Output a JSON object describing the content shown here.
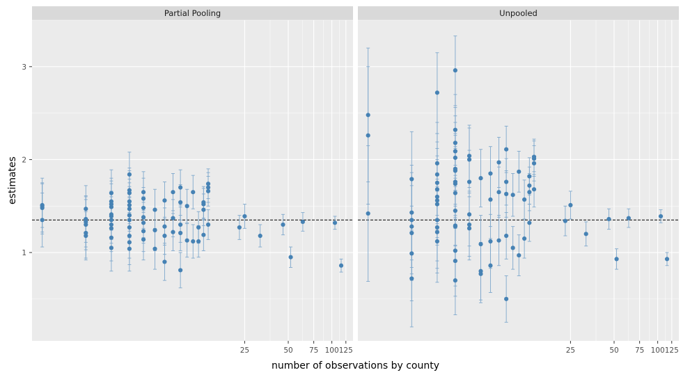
{
  "chart_data": {
    "type": "scatter",
    "xlabel": "number of observations by county",
    "ylabel": "estimates",
    "x_scale": "log",
    "xlim": [
      0.85,
      140
    ],
    "ylim": [
      0.05,
      3.5
    ],
    "x_ticks": [
      25,
      50,
      75,
      100,
      125
    ],
    "y_ticks": [
      1,
      2,
      3
    ],
    "grid": true,
    "reference_line": {
      "y": 1.35,
      "style": "dashed"
    },
    "colors": {
      "point": "#4682b4",
      "errorbar": "#7fa8cc",
      "panel_bg": "#ebebeb",
      "strip_bg": "#d9d9d9",
      "grid": "#ffffff",
      "refline": "#000000"
    },
    "panels": [
      {
        "strip": "Partial Pooling",
        "points": [
          {
            "x": 1,
            "y": 1.51,
            "lo": 1.27,
            "hi": 1.75
          },
          {
            "x": 1,
            "y": 1.48,
            "lo": 1.22,
            "hi": 1.74
          },
          {
            "x": 1,
            "y": 1.35,
            "lo": 1.06,
            "hi": 1.64
          },
          {
            "x": 1,
            "y": 1.5,
            "lo": 1.2,
            "hi": 1.8
          },
          {
            "x": 2,
            "y": 1.47,
            "lo": 1.22,
            "hi": 1.72
          },
          {
            "x": 2,
            "y": 1.36,
            "lo": 1.11,
            "hi": 1.61
          },
          {
            "x": 2,
            "y": 1.33,
            "lo": 1.06,
            "hi": 1.6
          },
          {
            "x": 2,
            "y": 1.3,
            "lo": 1.03,
            "hi": 1.57
          },
          {
            "x": 2,
            "y": 1.21,
            "lo": 0.94,
            "hi": 1.48
          },
          {
            "x": 2,
            "y": 1.18,
            "lo": 0.92,
            "hi": 1.44
          },
          {
            "x": 3,
            "y": 1.64,
            "lo": 1.39,
            "hi": 1.89
          },
          {
            "x": 3,
            "y": 1.55,
            "lo": 1.3,
            "hi": 1.8
          },
          {
            "x": 3,
            "y": 1.52,
            "lo": 1.27,
            "hi": 1.77
          },
          {
            "x": 3,
            "y": 1.49,
            "lo": 1.24,
            "hi": 1.74
          },
          {
            "x": 3,
            "y": 1.41,
            "lo": 1.16,
            "hi": 1.66
          },
          {
            "x": 3,
            "y": 1.39,
            "lo": 1.14,
            "hi": 1.64
          },
          {
            "x": 3,
            "y": 1.35,
            "lo": 1.1,
            "hi": 1.6
          },
          {
            "x": 3,
            "y": 1.3,
            "lo": 1.05,
            "hi": 1.55
          },
          {
            "x": 3,
            "y": 1.26,
            "lo": 1.01,
            "hi": 1.51
          },
          {
            "x": 3,
            "y": 1.16,
            "lo": 0.91,
            "hi": 1.41
          },
          {
            "x": 3,
            "y": 1.05,
            "lo": 0.8,
            "hi": 1.3
          },
          {
            "x": 4,
            "y": 1.84,
            "lo": 1.6,
            "hi": 2.08
          },
          {
            "x": 4,
            "y": 1.67,
            "lo": 1.43,
            "hi": 1.91
          },
          {
            "x": 4,
            "y": 1.64,
            "lo": 1.4,
            "hi": 1.88
          },
          {
            "x": 4,
            "y": 1.55,
            "lo": 1.31,
            "hi": 1.79
          },
          {
            "x": 4,
            "y": 1.51,
            "lo": 1.27,
            "hi": 1.75
          },
          {
            "x": 4,
            "y": 1.47,
            "lo": 1.23,
            "hi": 1.71
          },
          {
            "x": 4,
            "y": 1.4,
            "lo": 1.16,
            "hi": 1.64
          },
          {
            "x": 4,
            "y": 1.35,
            "lo": 1.11,
            "hi": 1.59
          },
          {
            "x": 4,
            "y": 1.27,
            "lo": 1.03,
            "hi": 1.51
          },
          {
            "x": 4,
            "y": 1.18,
            "lo": 0.94,
            "hi": 1.42
          },
          {
            "x": 4,
            "y": 1.11,
            "lo": 0.87,
            "hi": 1.35
          },
          {
            "x": 4,
            "y": 1.04,
            "lo": 0.8,
            "hi": 1.28
          },
          {
            "x": 5,
            "y": 1.65,
            "lo": 1.43,
            "hi": 1.87
          },
          {
            "x": 5,
            "y": 1.58,
            "lo": 1.36,
            "hi": 1.8
          },
          {
            "x": 5,
            "y": 1.48,
            "lo": 1.26,
            "hi": 1.7
          },
          {
            "x": 5,
            "y": 1.38,
            "lo": 1.16,
            "hi": 1.6
          },
          {
            "x": 5,
            "y": 1.32,
            "lo": 1.1,
            "hi": 1.54
          },
          {
            "x": 5,
            "y": 1.23,
            "lo": 1.01,
            "hi": 1.45
          },
          {
            "x": 5,
            "y": 1.14,
            "lo": 0.92,
            "hi": 1.36
          },
          {
            "x": 6,
            "y": 1.46,
            "lo": 1.24,
            "hi": 1.68
          },
          {
            "x": 6,
            "y": 1.24,
            "lo": 1.02,
            "hi": 1.46
          },
          {
            "x": 6,
            "y": 1.04,
            "lo": 0.82,
            "hi": 1.26
          },
          {
            "x": 7,
            "y": 1.56,
            "lo": 1.36,
            "hi": 1.76
          },
          {
            "x": 7,
            "y": 1.28,
            "lo": 1.08,
            "hi": 1.48
          },
          {
            "x": 7,
            "y": 1.18,
            "lo": 0.98,
            "hi": 1.38
          },
          {
            "x": 7,
            "y": 0.9,
            "lo": 0.7,
            "hi": 1.1
          },
          {
            "x": 8,
            "y": 1.65,
            "lo": 1.45,
            "hi": 1.85
          },
          {
            "x": 8,
            "y": 1.37,
            "lo": 1.17,
            "hi": 1.57
          },
          {
            "x": 8,
            "y": 1.22,
            "lo": 1.02,
            "hi": 1.42
          },
          {
            "x": 9,
            "y": 1.7,
            "lo": 1.51,
            "hi": 1.89
          },
          {
            "x": 9,
            "y": 1.54,
            "lo": 1.35,
            "hi": 1.73
          },
          {
            "x": 9,
            "y": 1.3,
            "lo": 1.11,
            "hi": 1.49
          },
          {
            "x": 9,
            "y": 1.21,
            "lo": 1.02,
            "hi": 1.4
          },
          {
            "x": 9,
            "y": 0.81,
            "lo": 0.62,
            "hi": 1.0
          },
          {
            "x": 10,
            "y": 1.5,
            "lo": 1.32,
            "hi": 1.68
          },
          {
            "x": 10,
            "y": 1.13,
            "lo": 0.95,
            "hi": 1.31
          },
          {
            "x": 11,
            "y": 1.65,
            "lo": 1.47,
            "hi": 1.83
          },
          {
            "x": 11,
            "y": 1.12,
            "lo": 0.94,
            "hi": 1.3
          },
          {
            "x": 12,
            "y": 1.27,
            "lo": 1.1,
            "hi": 1.44
          },
          {
            "x": 12,
            "y": 1.12,
            "lo": 0.95,
            "hi": 1.29
          },
          {
            "x": 13,
            "y": 1.54,
            "lo": 1.37,
            "hi": 1.71
          },
          {
            "x": 13,
            "y": 1.52,
            "lo": 1.35,
            "hi": 1.69
          },
          {
            "x": 13,
            "y": 1.46,
            "lo": 1.29,
            "hi": 1.63
          },
          {
            "x": 13,
            "y": 1.19,
            "lo": 1.02,
            "hi": 1.36
          },
          {
            "x": 14,
            "y": 1.74,
            "lo": 1.58,
            "hi": 1.9
          },
          {
            "x": 14,
            "y": 1.7,
            "lo": 1.54,
            "hi": 1.86
          },
          {
            "x": 14,
            "y": 1.66,
            "lo": 1.5,
            "hi": 1.82
          },
          {
            "x": 14,
            "y": 1.3,
            "lo": 1.14,
            "hi": 1.46
          },
          {
            "x": 23,
            "y": 1.27,
            "lo": 1.14,
            "hi": 1.4
          },
          {
            "x": 25,
            "y": 1.39,
            "lo": 1.26,
            "hi": 1.52
          },
          {
            "x": 32,
            "y": 1.18,
            "lo": 1.06,
            "hi": 1.3
          },
          {
            "x": 46,
            "y": 1.3,
            "lo": 1.19,
            "hi": 1.41
          },
          {
            "x": 52,
            "y": 0.95,
            "lo": 0.84,
            "hi": 1.06
          },
          {
            "x": 63,
            "y": 1.33,
            "lo": 1.23,
            "hi": 1.43
          },
          {
            "x": 105,
            "y": 1.32,
            "lo": 1.25,
            "hi": 1.39
          },
          {
            "x": 116,
            "y": 0.86,
            "lo": 0.79,
            "hi": 0.93
          }
        ]
      },
      {
        "strip": "Unpooled",
        "points": [
          {
            "x": 1,
            "y": 2.48,
            "lo": 1.76,
            "hi": 3.2
          },
          {
            "x": 1,
            "y": 2.26,
            "lo": 1.52,
            "hi": 3.0
          },
          {
            "x": 1,
            "y": 1.42,
            "lo": 0.69,
            "hi": 2.15
          },
          {
            "x": 2,
            "y": 1.79,
            "lo": 1.28,
            "hi": 2.3
          },
          {
            "x": 2,
            "y": 1.43,
            "lo": 0.92,
            "hi": 1.94
          },
          {
            "x": 2,
            "y": 1.35,
            "lo": 0.84,
            "hi": 1.86
          },
          {
            "x": 2,
            "y": 1.28,
            "lo": 0.77,
            "hi": 1.79
          },
          {
            "x": 2,
            "y": 1.21,
            "lo": 0.7,
            "hi": 1.72
          },
          {
            "x": 2,
            "y": 0.99,
            "lo": 0.48,
            "hi": 1.5
          },
          {
            "x": 2,
            "y": 0.72,
            "lo": 0.2,
            "hi": 1.24
          },
          {
            "x": 3,
            "y": 2.72,
            "lo": 2.28,
            "hi": 3.15
          },
          {
            "x": 3,
            "y": 1.96,
            "lo": 1.52,
            "hi": 2.4
          },
          {
            "x": 3,
            "y": 1.84,
            "lo": 1.4,
            "hi": 2.28
          },
          {
            "x": 3,
            "y": 1.75,
            "lo": 1.31,
            "hi": 2.19
          },
          {
            "x": 3,
            "y": 1.68,
            "lo": 1.24,
            "hi": 2.12
          },
          {
            "x": 3,
            "y": 1.6,
            "lo": 1.16,
            "hi": 2.04
          },
          {
            "x": 3,
            "y": 1.56,
            "lo": 1.12,
            "hi": 2.0
          },
          {
            "x": 3,
            "y": 1.52,
            "lo": 1.08,
            "hi": 1.96
          },
          {
            "x": 3,
            "y": 1.35,
            "lo": 0.91,
            "hi": 1.79
          },
          {
            "x": 3,
            "y": 1.27,
            "lo": 0.83,
            "hi": 1.71
          },
          {
            "x": 3,
            "y": 1.22,
            "lo": 0.78,
            "hi": 1.66
          },
          {
            "x": 3,
            "y": 1.12,
            "lo": 0.68,
            "hi": 1.56
          },
          {
            "x": 4,
            "y": 2.96,
            "lo": 2.58,
            "hi": 3.33
          },
          {
            "x": 4,
            "y": 2.32,
            "lo": 1.94,
            "hi": 2.7
          },
          {
            "x": 4,
            "y": 2.18,
            "lo": 1.8,
            "hi": 2.56
          },
          {
            "x": 4,
            "y": 2.09,
            "lo": 1.71,
            "hi": 2.47
          },
          {
            "x": 4,
            "y": 2.02,
            "lo": 1.64,
            "hi": 2.4
          },
          {
            "x": 4,
            "y": 1.9,
            "lo": 1.52,
            "hi": 2.28
          },
          {
            "x": 4,
            "y": 1.88,
            "lo": 1.5,
            "hi": 2.26
          },
          {
            "x": 4,
            "y": 1.76,
            "lo": 1.38,
            "hi": 2.14
          },
          {
            "x": 4,
            "y": 1.74,
            "lo": 1.36,
            "hi": 2.12
          },
          {
            "x": 4,
            "y": 1.64,
            "lo": 1.26,
            "hi": 2.02
          },
          {
            "x": 4,
            "y": 1.45,
            "lo": 1.07,
            "hi": 1.83
          },
          {
            "x": 4,
            "y": 1.29,
            "lo": 0.91,
            "hi": 1.67
          },
          {
            "x": 4,
            "y": 1.28,
            "lo": 0.9,
            "hi": 1.66
          },
          {
            "x": 4,
            "y": 1.02,
            "lo": 0.64,
            "hi": 1.4
          },
          {
            "x": 4,
            "y": 0.91,
            "lo": 0.53,
            "hi": 1.29
          },
          {
            "x": 4,
            "y": 0.7,
            "lo": 0.33,
            "hi": 1.08
          },
          {
            "x": 5,
            "y": 2.04,
            "lo": 1.7,
            "hi": 2.37
          },
          {
            "x": 5,
            "y": 2.0,
            "lo": 1.66,
            "hi": 2.34
          },
          {
            "x": 5,
            "y": 1.76,
            "lo": 1.42,
            "hi": 2.1
          },
          {
            "x": 5,
            "y": 1.41,
            "lo": 1.07,
            "hi": 1.75
          },
          {
            "x": 5,
            "y": 1.3,
            "lo": 0.96,
            "hi": 1.64
          },
          {
            "x": 5,
            "y": 1.26,
            "lo": 0.92,
            "hi": 1.6
          },
          {
            "x": 6,
            "y": 1.8,
            "lo": 1.49,
            "hi": 2.11
          },
          {
            "x": 6,
            "y": 1.09,
            "lo": 0.78,
            "hi": 1.4
          },
          {
            "x": 6,
            "y": 0.8,
            "lo": 0.49,
            "hi": 1.11
          },
          {
            "x": 6,
            "y": 0.77,
            "lo": 0.46,
            "hi": 1.08
          },
          {
            "x": 7,
            "y": 1.85,
            "lo": 1.56,
            "hi": 2.14
          },
          {
            "x": 7,
            "y": 1.57,
            "lo": 1.28,
            "hi": 1.86
          },
          {
            "x": 7,
            "y": 1.12,
            "lo": 0.83,
            "hi": 1.41
          },
          {
            "x": 7,
            "y": 0.86,
            "lo": 0.57,
            "hi": 1.15
          },
          {
            "x": 8,
            "y": 1.97,
            "lo": 1.7,
            "hi": 2.24
          },
          {
            "x": 8,
            "y": 1.65,
            "lo": 1.38,
            "hi": 1.92
          },
          {
            "x": 8,
            "y": 1.13,
            "lo": 0.86,
            "hi": 1.4
          },
          {
            "x": 9,
            "y": 2.11,
            "lo": 1.86,
            "hi": 2.36
          },
          {
            "x": 9,
            "y": 1.76,
            "lo": 1.51,
            "hi": 2.01
          },
          {
            "x": 9,
            "y": 1.63,
            "lo": 1.38,
            "hi": 1.88
          },
          {
            "x": 9,
            "y": 1.18,
            "lo": 0.93,
            "hi": 1.43
          },
          {
            "x": 9,
            "y": 0.5,
            "lo": 0.25,
            "hi": 0.75
          },
          {
            "x": 10,
            "y": 1.62,
            "lo": 1.39,
            "hi": 1.85
          },
          {
            "x": 10,
            "y": 1.05,
            "lo": 0.82,
            "hi": 1.28
          },
          {
            "x": 11,
            "y": 1.87,
            "lo": 1.65,
            "hi": 2.09
          },
          {
            "x": 11,
            "y": 0.97,
            "lo": 0.75,
            "hi": 1.19
          },
          {
            "x": 12,
            "y": 1.57,
            "lo": 1.36,
            "hi": 1.78
          },
          {
            "x": 12,
            "y": 1.15,
            "lo": 0.94,
            "hi": 1.36
          },
          {
            "x": 13,
            "y": 1.82,
            "lo": 1.62,
            "hi": 2.02
          },
          {
            "x": 13,
            "y": 1.72,
            "lo": 1.52,
            "hi": 1.92
          },
          {
            "x": 13,
            "y": 1.65,
            "lo": 1.45,
            "hi": 1.85
          },
          {
            "x": 13,
            "y": 1.32,
            "lo": 1.12,
            "hi": 1.52
          },
          {
            "x": 14,
            "y": 2.03,
            "lo": 1.84,
            "hi": 2.22
          },
          {
            "x": 14,
            "y": 2.01,
            "lo": 1.82,
            "hi": 2.2
          },
          {
            "x": 14,
            "y": 1.96,
            "lo": 1.77,
            "hi": 2.15
          },
          {
            "x": 14,
            "y": 1.68,
            "lo": 1.49,
            "hi": 1.87
          },
          {
            "x": 23,
            "y": 1.34,
            "lo": 1.18,
            "hi": 1.5
          },
          {
            "x": 25,
            "y": 1.51,
            "lo": 1.36,
            "hi": 1.66
          },
          {
            "x": 32,
            "y": 1.2,
            "lo": 1.07,
            "hi": 1.33
          },
          {
            "x": 46,
            "y": 1.36,
            "lo": 1.25,
            "hi": 1.47
          },
          {
            "x": 52,
            "y": 0.93,
            "lo": 0.82,
            "hi": 1.04
          },
          {
            "x": 63,
            "y": 1.37,
            "lo": 1.27,
            "hi": 1.47
          },
          {
            "x": 105,
            "y": 1.39,
            "lo": 1.32,
            "hi": 1.46
          },
          {
            "x": 116,
            "y": 0.93,
            "lo": 0.86,
            "hi": 1.0
          }
        ]
      }
    ]
  }
}
